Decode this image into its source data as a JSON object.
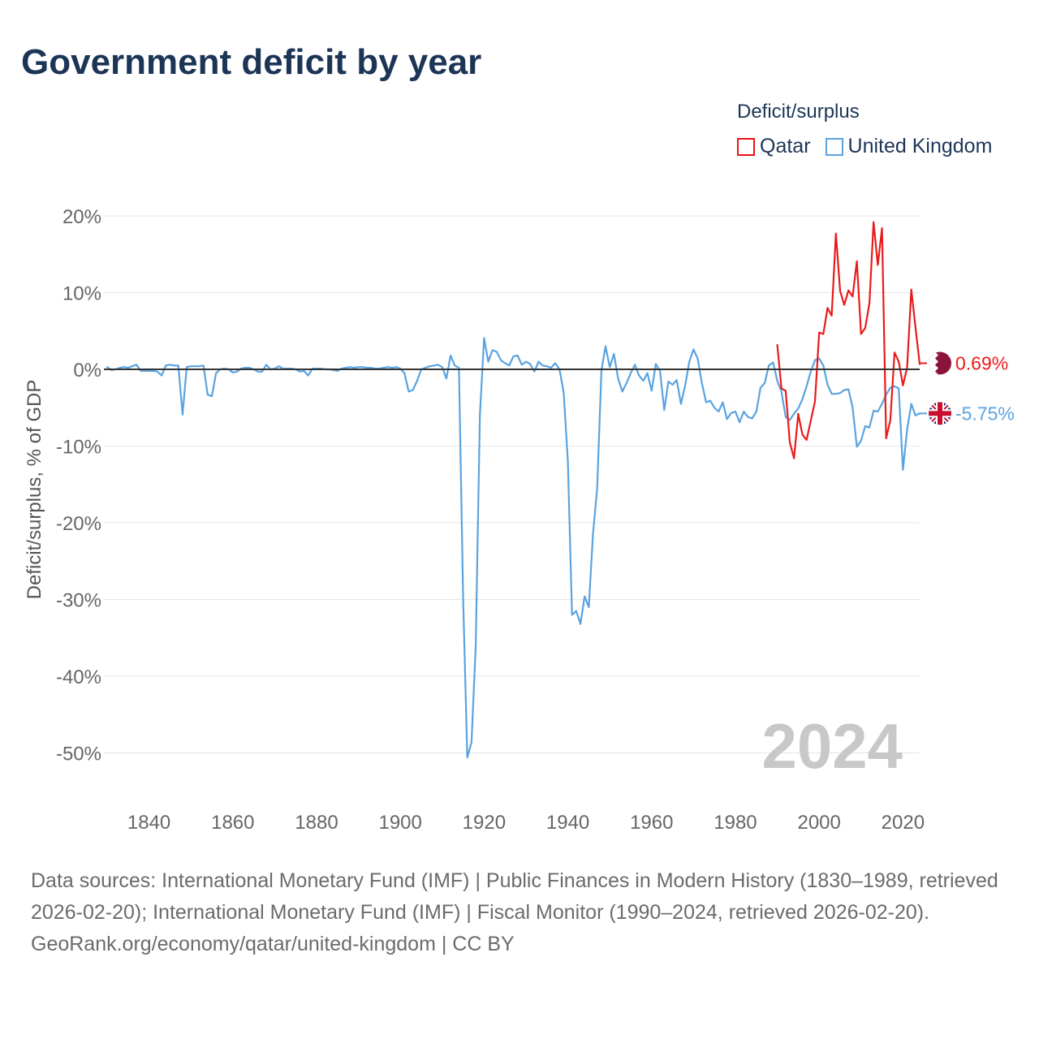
{
  "title": "Government deficit by year",
  "legend": {
    "title": "Deficit/surplus",
    "items": [
      {
        "label": "Qatar",
        "color": "#e81b1b"
      },
      {
        "label": "United Kingdom",
        "color": "#5aa3e0"
      }
    ]
  },
  "footer": {
    "sources": "Data sources: International Monetary Fund (IMF) | Public Finances in Modern History (1830–1989, retrieved 2026-02-20); International Monetary Fund (IMF) | Fiscal Monitor (1990–2024, retrieved 2026-02-20).",
    "attribution": "GeoRank.org/economy/qatar/united-kingdom | CC BY"
  },
  "chart_data": {
    "type": "line",
    "title": "Government deficit by year",
    "xlabel": "",
    "ylabel": "Deficit/surplus, % of GDP",
    "xlim": [
      1830,
      2024
    ],
    "ylim": [
      -55,
      22
    ],
    "x_ticks": [
      1840,
      1860,
      1880,
      1900,
      1920,
      1940,
      1960,
      1980,
      2000,
      2020
    ],
    "x_tick_labels": [
      "1840",
      "1860",
      "1880",
      "1900",
      "1920",
      "1940",
      "1960",
      "1980",
      "2000",
      "2020"
    ],
    "y_ticks": [
      20,
      10,
      0,
      -10,
      -20,
      -30,
      -40,
      -50
    ],
    "y_tick_labels": [
      "20%",
      "10%",
      "0%",
      "-10%",
      "-20%",
      "-30%",
      "-40%",
      "-50%"
    ],
    "year_watermark": "2024",
    "grid": true,
    "zero_line": true,
    "series": [
      {
        "name": "Qatar",
        "color": "#e81b1b",
        "end_label": "0.69%",
        "points": [
          [
            1990,
            3.2
          ],
          [
            1991,
            -2.5
          ],
          [
            1992,
            -2.8
          ],
          [
            1993,
            -9.5
          ],
          [
            1994,
            -11.6
          ],
          [
            1995,
            -5.8
          ],
          [
            1996,
            -8.5
          ],
          [
            1997,
            -9.2
          ],
          [
            1998,
            -6.7
          ],
          [
            1999,
            -4.2
          ],
          [
            2000,
            4.8
          ],
          [
            2001,
            4.6
          ],
          [
            2002,
            8.0
          ],
          [
            2003,
            7.0
          ],
          [
            2004,
            17.7
          ],
          [
            2005,
            10.2
          ],
          [
            2006,
            8.4
          ],
          [
            2007,
            10.3
          ],
          [
            2008,
            9.5
          ],
          [
            2009,
            14.1
          ],
          [
            2010,
            4.6
          ],
          [
            2011,
            5.4
          ],
          [
            2012,
            8.6
          ],
          [
            2013,
            19.2
          ],
          [
            2014,
            13.6
          ],
          [
            2015,
            18.4
          ],
          [
            2016,
            -9.0
          ],
          [
            2017,
            -6.6
          ],
          [
            2018,
            2.2
          ],
          [
            2019,
            1.0
          ],
          [
            2020,
            -2.1
          ],
          [
            2021,
            0.2
          ],
          [
            2022,
            10.4
          ],
          [
            2023,
            5.5
          ],
          [
            2024,
            0.69
          ]
        ]
      },
      {
        "name": "United Kingdom",
        "color": "#5aa3e0",
        "end_label": "-5.75%",
        "points": [
          [
            1830,
            0.3
          ],
          [
            1831,
            -0.1
          ],
          [
            1832,
            0.0
          ],
          [
            1833,
            0.2
          ],
          [
            1834,
            0.3
          ],
          [
            1835,
            0.2
          ],
          [
            1836,
            0.4
          ],
          [
            1837,
            0.6
          ],
          [
            1838,
            -0.2
          ],
          [
            1839,
            -0.2
          ],
          [
            1840,
            -0.2
          ],
          [
            1841,
            -0.2
          ],
          [
            1842,
            -0.3
          ],
          [
            1843,
            -0.8
          ],
          [
            1844,
            0.5
          ],
          [
            1845,
            0.6
          ],
          [
            1846,
            0.5
          ],
          [
            1847,
            0.5
          ],
          [
            1848,
            -5.9
          ],
          [
            1849,
            0.3
          ],
          [
            1850,
            0.4
          ],
          [
            1851,
            0.4
          ],
          [
            1852,
            0.4
          ],
          [
            1853,
            0.5
          ],
          [
            1854,
            -3.3
          ],
          [
            1855,
            -3.5
          ],
          [
            1856,
            -0.5
          ],
          [
            1857,
            0.0
          ],
          [
            1858,
            0.1
          ],
          [
            1859,
            0.0
          ],
          [
            1860,
            -0.4
          ],
          [
            1861,
            -0.3
          ],
          [
            1862,
            0.1
          ],
          [
            1863,
            0.2
          ],
          [
            1864,
            0.2
          ],
          [
            1865,
            0.0
          ],
          [
            1866,
            -0.3
          ],
          [
            1867,
            -0.3
          ],
          [
            1868,
            0.6
          ],
          [
            1869,
            0.0
          ],
          [
            1870,
            0.1
          ],
          [
            1871,
            0.4
          ],
          [
            1872,
            0.1
          ],
          [
            1873,
            0.1
          ],
          [
            1874,
            0.1
          ],
          [
            1875,
            0.0
          ],
          [
            1876,
            -0.3
          ],
          [
            1877,
            -0.2
          ],
          [
            1878,
            -0.8
          ],
          [
            1879,
            0.1
          ],
          [
            1880,
            0.1
          ],
          [
            1881,
            0.1
          ],
          [
            1882,
            0.0
          ],
          [
            1883,
            0.0
          ],
          [
            1884,
            -0.1
          ],
          [
            1885,
            -0.2
          ],
          [
            1886,
            0.1
          ],
          [
            1887,
            0.2
          ],
          [
            1888,
            0.3
          ],
          [
            1889,
            0.2
          ],
          [
            1890,
            0.3
          ],
          [
            1891,
            0.3
          ],
          [
            1892,
            0.2
          ],
          [
            1893,
            0.2
          ],
          [
            1894,
            0.1
          ],
          [
            1895,
            0.1
          ],
          [
            1896,
            0.2
          ],
          [
            1897,
            0.3
          ],
          [
            1898,
            0.2
          ],
          [
            1899,
            0.3
          ],
          [
            1900,
            0.1
          ],
          [
            1901,
            -0.5
          ],
          [
            1902,
            -2.9
          ],
          [
            1903,
            -2.7
          ],
          [
            1904,
            -1.5
          ],
          [
            1905,
            0.0
          ],
          [
            1906,
            0.2
          ],
          [
            1907,
            0.4
          ],
          [
            1908,
            0.5
          ],
          [
            1909,
            0.6
          ],
          [
            1910,
            0.3
          ],
          [
            1911,
            -1.2
          ],
          [
            1912,
            1.8
          ],
          [
            1913,
            0.5
          ],
          [
            1914,
            0.2
          ],
          [
            1915,
            -30.0
          ],
          [
            1916,
            -50.6
          ],
          [
            1917,
            -48.6
          ],
          [
            1918,
            -36.0
          ],
          [
            1919,
            -6.0
          ],
          [
            1920,
            4.1
          ],
          [
            1921,
            1.0
          ],
          [
            1922,
            2.5
          ],
          [
            1923,
            2.3
          ],
          [
            1924,
            1.2
          ],
          [
            1925,
            0.8
          ],
          [
            1926,
            0.5
          ],
          [
            1927,
            1.7
          ],
          [
            1928,
            1.8
          ],
          [
            1929,
            0.6
          ],
          [
            1930,
            1.0
          ],
          [
            1931,
            0.7
          ],
          [
            1932,
            -0.3
          ],
          [
            1933,
            1.0
          ],
          [
            1934,
            0.5
          ],
          [
            1935,
            0.4
          ],
          [
            1936,
            0.2
          ],
          [
            1937,
            0.8
          ],
          [
            1938,
            0.0
          ],
          [
            1939,
            -3.0
          ],
          [
            1940,
            -12.0
          ],
          [
            1941,
            -32.0
          ],
          [
            1942,
            -31.5
          ],
          [
            1943,
            -33.2
          ],
          [
            1944,
            -29.6
          ],
          [
            1945,
            -31.0
          ],
          [
            1946,
            -21.5
          ],
          [
            1947,
            -15.5
          ],
          [
            1948,
            -0.2
          ],
          [
            1949,
            3.0
          ],
          [
            1950,
            0.3
          ],
          [
            1951,
            2.0
          ],
          [
            1952,
            -1.2
          ],
          [
            1953,
            -2.9
          ],
          [
            1954,
            -1.8
          ],
          [
            1955,
            -0.5
          ],
          [
            1956,
            0.6
          ],
          [
            1957,
            -0.8
          ],
          [
            1958,
            -1.5
          ],
          [
            1959,
            -0.5
          ],
          [
            1960,
            -2.8
          ],
          [
            1961,
            0.7
          ],
          [
            1962,
            -0.2
          ],
          [
            1963,
            -5.3
          ],
          [
            1964,
            -1.6
          ],
          [
            1965,
            -2.0
          ],
          [
            1966,
            -1.4
          ],
          [
            1967,
            -4.5
          ],
          [
            1968,
            -2.1
          ],
          [
            1969,
            1.0
          ],
          [
            1970,
            2.6
          ],
          [
            1971,
            1.4
          ],
          [
            1972,
            -1.8
          ],
          [
            1973,
            -4.3
          ],
          [
            1974,
            -4.1
          ],
          [
            1975,
            -5.0
          ],
          [
            1976,
            -5.5
          ],
          [
            1977,
            -4.3
          ],
          [
            1978,
            -6.5
          ],
          [
            1979,
            -5.7
          ],
          [
            1980,
            -5.5
          ],
          [
            1981,
            -6.9
          ],
          [
            1982,
            -5.5
          ],
          [
            1983,
            -6.2
          ],
          [
            1984,
            -6.4
          ],
          [
            1985,
            -5.5
          ],
          [
            1986,
            -2.4
          ],
          [
            1987,
            -1.8
          ],
          [
            1988,
            0.5
          ],
          [
            1989,
            0.9
          ],
          [
            1990,
            -1.5
          ],
          [
            1991,
            -2.9
          ],
          [
            1992,
            -6.2
          ],
          [
            1993,
            -6.6
          ],
          [
            1994,
            -5.8
          ],
          [
            1995,
            -5.1
          ],
          [
            1996,
            -3.9
          ],
          [
            1997,
            -2.2
          ],
          [
            1998,
            -0.3
          ],
          [
            1999,
            1.2
          ],
          [
            2000,
            1.4
          ],
          [
            2001,
            0.5
          ],
          [
            2002,
            -2.0
          ],
          [
            2003,
            -3.2
          ],
          [
            2004,
            -3.2
          ],
          [
            2005,
            -3.1
          ],
          [
            2006,
            -2.7
          ],
          [
            2007,
            -2.6
          ],
          [
            2008,
            -5.0
          ],
          [
            2009,
            -10.1
          ],
          [
            2010,
            -9.3
          ],
          [
            2011,
            -7.4
          ],
          [
            2012,
            -7.6
          ],
          [
            2013,
            -5.4
          ],
          [
            2014,
            -5.5
          ],
          [
            2015,
            -4.5
          ],
          [
            2016,
            -3.3
          ],
          [
            2017,
            -2.4
          ],
          [
            2018,
            -2.2
          ],
          [
            2019,
            -2.5
          ],
          [
            2020,
            -13.1
          ],
          [
            2021,
            -7.9
          ],
          [
            2022,
            -4.5
          ],
          [
            2023,
            -6.0
          ],
          [
            2024,
            -5.75
          ]
        ]
      }
    ]
  }
}
